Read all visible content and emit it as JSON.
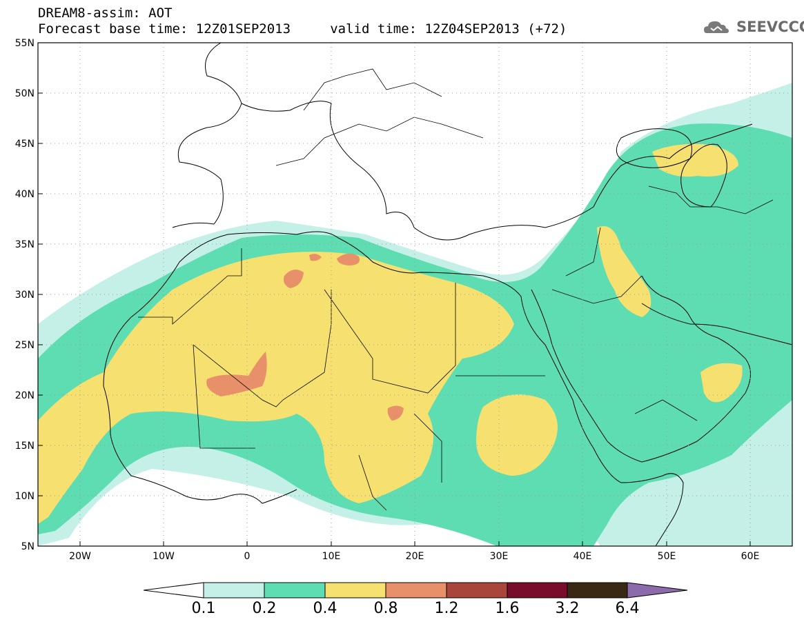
{
  "header": {
    "title": "DREAM8-assim: AOT",
    "subtitle": "Forecast base time: 12Z01SEP2013     valid time: 12Z04SEP2013 (+72)",
    "logo_text": "SEEVCCC"
  },
  "map": {
    "lat_labels": [
      "55N",
      "50N",
      "45N",
      "40N",
      "35N",
      "30N",
      "25N",
      "20N",
      "15N",
      "10N",
      "5N"
    ],
    "lon_labels": [
      "20W",
      "10W",
      "0",
      "10E",
      "20E",
      "30E",
      "40E",
      "50E",
      "60E"
    ]
  },
  "colorbar": {
    "labels": [
      "0.1",
      "0.2",
      "0.4",
      "0.8",
      "1.2",
      "1.6",
      "3.2",
      "6.4"
    ],
    "colors": [
      "#c4f0e8",
      "#5edcb2",
      "#f5e070",
      "#e8906a",
      "#a8463c",
      "#780c2a",
      "#3a2814",
      "#8c6aac"
    ],
    "over_color": "#8c6aac",
    "under_color": "#ffffff"
  },
  "legend_colors": {
    "level_0_1": "#c4f0e8",
    "level_0_2": "#5edcb2",
    "level_0_4": "#f5e070",
    "level_0_8": "#e8906a"
  }
}
